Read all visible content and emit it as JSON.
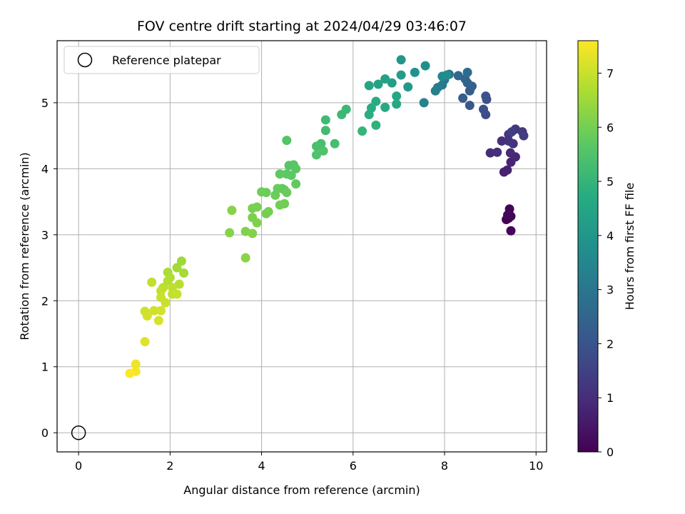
{
  "chart_data": {
    "type": "scatter",
    "title": "FOV centre drift starting at 2024/04/29 03:46:07",
    "xlabel": "Angular distance from reference (arcmin)",
    "ylabel": "Rotation from reference (arcmin)",
    "xlim": [
      -0.47,
      10.23
    ],
    "ylim": [
      -0.29,
      5.94
    ],
    "x_ticks": [
      0,
      2,
      4,
      6,
      8,
      10
    ],
    "y_ticks": [
      0,
      1,
      2,
      3,
      4,
      5
    ],
    "grid": true,
    "legend": {
      "placement": "top-left",
      "entries": [
        {
          "label": "Reference platepar",
          "marker": "open-circle",
          "x": 0,
          "y": 0
        }
      ]
    },
    "colorbar": {
      "label": "Hours from first FF file",
      "colormap": "viridis",
      "range": [
        0,
        7.6
      ],
      "ticks": [
        0,
        1,
        2,
        3,
        4,
        5,
        6,
        7
      ]
    },
    "series": [
      {
        "color_by": "hours",
        "points": [
          [
            9.4,
            3.25,
            0.0
          ],
          [
            9.35,
            3.23,
            0.03
          ],
          [
            9.45,
            3.28,
            0.06
          ],
          [
            9.42,
            3.39,
            0.09
          ],
          [
            9.45,
            3.06,
            0.12
          ],
          [
            9.38,
            3.3,
            0.15
          ],
          [
            9.3,
            3.95,
            0.7
          ],
          [
            9.37,
            3.98,
            0.75
          ],
          [
            9.45,
            4.1,
            0.8
          ],
          [
            9.55,
            4.18,
            0.85
          ],
          [
            9.44,
            4.24,
            0.9
          ],
          [
            9.0,
            4.24,
            0.95
          ],
          [
            9.15,
            4.25,
            1.0
          ],
          [
            9.25,
            4.42,
            1.05
          ],
          [
            9.4,
            4.42,
            1.1
          ],
          [
            9.5,
            4.38,
            1.15
          ],
          [
            9.4,
            4.52,
            1.2
          ],
          [
            9.55,
            4.6,
            1.25
          ],
          [
            9.7,
            4.56,
            1.3
          ],
          [
            9.73,
            4.5,
            1.35
          ],
          [
            9.47,
            4.56,
            1.4
          ],
          [
            8.9,
            4.82,
            1.8
          ],
          [
            8.85,
            4.9,
            1.85
          ],
          [
            8.92,
            5.05,
            1.9
          ],
          [
            8.9,
            5.1,
            1.95
          ],
          [
            8.55,
            4.96,
            2.1
          ],
          [
            8.4,
            5.07,
            2.2
          ],
          [
            8.55,
            5.18,
            2.3
          ],
          [
            8.6,
            5.25,
            2.35
          ],
          [
            8.5,
            5.3,
            2.4
          ],
          [
            8.45,
            5.36,
            2.5
          ],
          [
            8.3,
            5.41,
            2.6
          ],
          [
            8.5,
            5.46,
            2.7
          ],
          [
            8.1,
            5.43,
            2.8
          ],
          [
            8.0,
            5.35,
            3.0
          ],
          [
            7.95,
            5.27,
            3.1
          ],
          [
            7.85,
            5.23,
            3.2
          ],
          [
            7.8,
            5.18,
            3.3
          ],
          [
            7.55,
            5.0,
            3.4
          ],
          [
            7.95,
            5.4,
            3.6
          ],
          [
            8.05,
            5.42,
            3.7
          ],
          [
            7.58,
            5.56,
            3.8
          ],
          [
            7.35,
            5.46,
            3.9
          ],
          [
            7.05,
            5.65,
            4.0
          ],
          [
            7.2,
            5.24,
            4.1
          ],
          [
            7.05,
            5.42,
            4.2
          ],
          [
            6.85,
            5.3,
            4.3
          ],
          [
            6.7,
            5.36,
            4.35
          ],
          [
            6.55,
            5.28,
            4.4
          ],
          [
            6.35,
            5.26,
            4.5
          ],
          [
            6.95,
            5.1,
            4.55
          ],
          [
            6.95,
            4.98,
            4.6
          ],
          [
            6.7,
            4.93,
            4.65
          ],
          [
            6.5,
            5.02,
            4.7
          ],
          [
            6.4,
            4.92,
            4.75
          ],
          [
            6.35,
            4.82,
            4.8
          ],
          [
            6.5,
            4.66,
            4.9
          ],
          [
            6.2,
            4.57,
            5.0
          ],
          [
            5.85,
            4.9,
            5.1
          ],
          [
            5.75,
            4.82,
            5.15
          ],
          [
            5.4,
            4.74,
            5.2
          ],
          [
            5.4,
            4.58,
            5.25
          ],
          [
            5.6,
            4.38,
            5.3
          ],
          [
            5.3,
            4.38,
            5.35
          ],
          [
            5.2,
            4.34,
            5.4
          ],
          [
            5.35,
            4.27,
            5.45
          ],
          [
            5.2,
            4.21,
            5.5
          ],
          [
            4.55,
            4.43,
            5.55
          ],
          [
            4.6,
            4.05,
            5.6
          ],
          [
            4.7,
            4.06,
            5.62
          ],
          [
            4.75,
            4.0,
            5.65
          ],
          [
            4.55,
            3.92,
            5.68
          ],
          [
            4.65,
            3.9,
            5.7
          ],
          [
            4.4,
            3.92,
            5.72
          ],
          [
            4.75,
            3.77,
            5.75
          ],
          [
            4.45,
            3.7,
            5.78
          ],
          [
            4.5,
            3.68,
            5.8
          ],
          [
            4.35,
            3.7,
            5.82
          ],
          [
            4.55,
            3.64,
            5.85
          ],
          [
            4.3,
            3.6,
            5.88
          ],
          [
            4.1,
            3.64,
            5.9
          ],
          [
            4.0,
            3.65,
            5.92
          ],
          [
            4.5,
            3.47,
            5.95
          ],
          [
            4.4,
            3.45,
            5.97
          ],
          [
            4.1,
            3.32,
            6.0
          ],
          [
            4.15,
            3.35,
            6.02
          ],
          [
            3.9,
            3.42,
            6.05
          ],
          [
            3.8,
            3.4,
            6.07
          ],
          [
            3.8,
            3.26,
            6.1
          ],
          [
            3.9,
            3.18,
            6.12
          ],
          [
            3.65,
            3.05,
            6.15
          ],
          [
            3.8,
            3.02,
            6.18
          ],
          [
            3.3,
            3.03,
            6.2
          ],
          [
            3.35,
            3.37,
            6.22
          ],
          [
            3.65,
            2.65,
            6.25
          ],
          [
            2.25,
            2.6,
            6.5
          ],
          [
            2.15,
            2.5,
            6.55
          ],
          [
            2.3,
            2.42,
            6.6
          ],
          [
            1.95,
            2.43,
            6.65
          ],
          [
            2.0,
            2.35,
            6.7
          ],
          [
            1.95,
            2.3,
            6.75
          ],
          [
            2.2,
            2.25,
            6.8
          ],
          [
            1.85,
            2.2,
            6.85
          ],
          [
            2.05,
            2.2,
            6.88
          ],
          [
            1.6,
            2.28,
            6.9
          ],
          [
            1.8,
            2.15,
            6.92
          ],
          [
            2.05,
            2.1,
            6.95
          ],
          [
            2.15,
            2.1,
            6.97
          ],
          [
            1.8,
            2.05,
            7.0
          ],
          [
            1.9,
            1.97,
            7.02
          ],
          [
            1.45,
            1.84,
            7.05
          ],
          [
            1.65,
            1.85,
            7.07
          ],
          [
            1.8,
            1.85,
            7.1
          ],
          [
            1.5,
            1.77,
            7.12
          ],
          [
            1.75,
            1.7,
            7.15
          ],
          [
            1.45,
            1.38,
            7.25
          ],
          [
            1.25,
            1.04,
            7.4
          ],
          [
            1.25,
            0.93,
            7.5
          ],
          [
            1.12,
            0.9,
            7.6
          ]
        ]
      }
    ]
  }
}
